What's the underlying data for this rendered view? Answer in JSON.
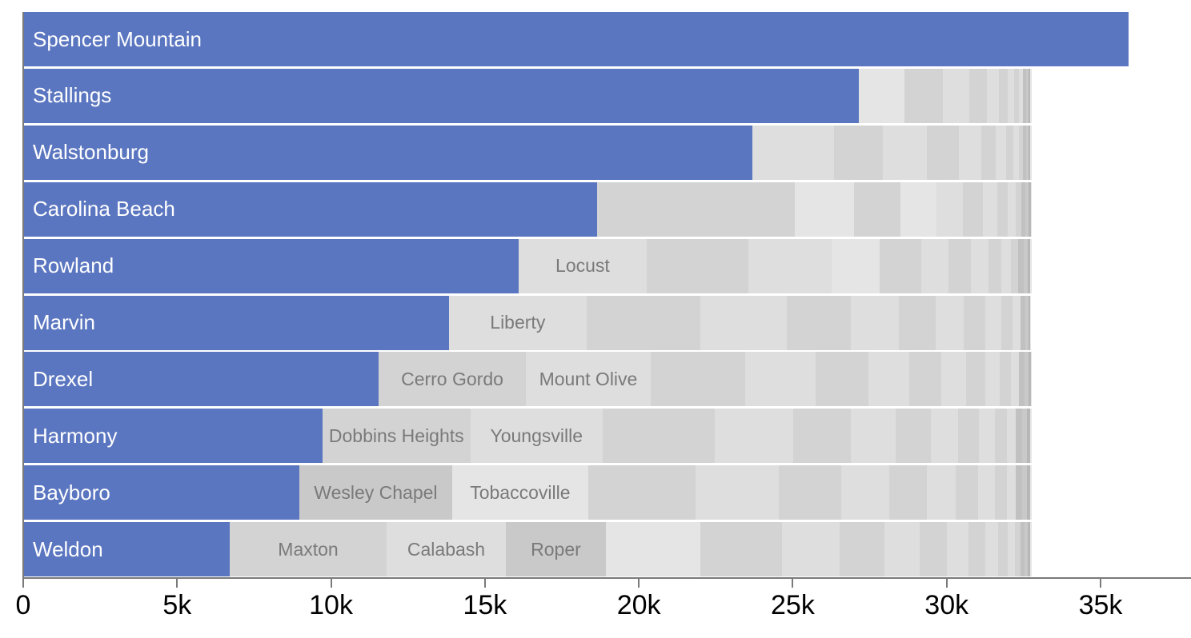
{
  "chart_data": {
    "type": "bar",
    "orientation": "horizontal-stacked",
    "title": "",
    "xlabel": "",
    "ylabel": "",
    "grid": false,
    "legend": "none",
    "x_axis": {
      "min": 0,
      "max": 37900,
      "ticks": [
        {
          "label": "0",
          "value": 0
        },
        {
          "label": "5k",
          "value": 5000
        },
        {
          "label": "10k",
          "value": 10000
        },
        {
          "label": "15k",
          "value": 15000
        },
        {
          "label": "20k",
          "value": 20000
        },
        {
          "label": "25k",
          "value": 25000
        },
        {
          "label": "30k",
          "value": 30000
        },
        {
          "label": "35k",
          "value": 35000
        }
      ]
    },
    "stack_total_approx": 32760,
    "rows": [
      {
        "name": "Spencer Mountain",
        "value": 35900,
        "segments": []
      },
      {
        "name": "Stallings",
        "value": 27145,
        "segments": [
          {
            "v": 1480,
            "s": 2
          },
          {
            "v": 1250,
            "s": 1
          },
          {
            "v": 860,
            "s": 0
          },
          {
            "v": 570,
            "s": 1
          },
          {
            "v": 390,
            "s": 0
          },
          {
            "v": 285,
            "s": 1
          },
          {
            "v": 210,
            "s": 0
          },
          {
            "v": 155,
            "s": 1
          },
          {
            "v": 130,
            "s": 0
          },
          {
            "v": 105,
            "s": 4
          },
          {
            "v": 80,
            "s": 3
          },
          {
            "v": 50,
            "s": 5
          },
          {
            "v": 50,
            "s": 2
          }
        ]
      },
      {
        "name": "Walstonburg",
        "value": 23690,
        "segments": [
          {
            "v": 2650,
            "s": 0
          },
          {
            "v": 1585,
            "s": 1
          },
          {
            "v": 1430,
            "s": 0
          },
          {
            "v": 1040,
            "s": 1
          },
          {
            "v": 730,
            "s": 0
          },
          {
            "v": 470,
            "s": 1
          },
          {
            "v": 340,
            "s": 0
          },
          {
            "v": 235,
            "s": 1
          },
          {
            "v": 180,
            "s": 0
          },
          {
            "v": 130,
            "s": 1
          },
          {
            "v": 105,
            "s": 4
          },
          {
            "v": 80,
            "s": 3
          },
          {
            "v": 50,
            "s": 5
          },
          {
            "v": 50,
            "s": 2
          }
        ]
      },
      {
        "name": "Carolina Beach",
        "value": 18640,
        "segments": [
          {
            "v": 3535,
            "s": 1
          },
          {
            "v": 2885,
            "s": 1
          },
          {
            "v": 1925,
            "s": 2
          },
          {
            "v": 1510,
            "s": 1
          },
          {
            "v": 1170,
            "s": 2
          },
          {
            "v": 860,
            "s": 0
          },
          {
            "v": 650,
            "s": 1
          },
          {
            "v": 470,
            "s": 0
          },
          {
            "v": 340,
            "s": 1
          },
          {
            "v": 260,
            "s": 0
          },
          {
            "v": 180,
            "s": 1
          },
          {
            "v": 130,
            "s": 4
          },
          {
            "v": 105,
            "s": 3
          },
          {
            "v": 80,
            "s": 5
          },
          {
            "v": 25,
            "s": 2
          }
        ]
      },
      {
        "name": "Rowland",
        "value": 16095,
        "segments": [
          {
            "v": 4160,
            "s": 0,
            "label": "Locust"
          },
          {
            "v": 3300,
            "s": 1
          },
          {
            "v": 2705,
            "s": 0
          },
          {
            "v": 1560,
            "s": 2
          },
          {
            "v": 1350,
            "s": 1
          },
          {
            "v": 885,
            "s": 0
          },
          {
            "v": 730,
            "s": 1
          },
          {
            "v": 570,
            "s": 0
          },
          {
            "v": 415,
            "s": 1
          },
          {
            "v": 310,
            "s": 0
          },
          {
            "v": 235,
            "s": 1
          },
          {
            "v": 180,
            "s": 4
          },
          {
            "v": 130,
            "s": 3
          },
          {
            "v": 80,
            "s": 5
          },
          {
            "v": 50,
            "s": 2
          }
        ]
      },
      {
        "name": "Marvin",
        "value": 13830,
        "segments": [
          {
            "v": 4470,
            "s": 0,
            "label": "Liberty"
          },
          {
            "v": 3690,
            "s": 1
          },
          {
            "v": 2810,
            "s": 0
          },
          {
            "v": 2080,
            "s": 1
          },
          {
            "v": 1560,
            "s": 0
          },
          {
            "v": 1195,
            "s": 1
          },
          {
            "v": 910,
            "s": 0
          },
          {
            "v": 700,
            "s": 1
          },
          {
            "v": 520,
            "s": 0
          },
          {
            "v": 365,
            "s": 1
          },
          {
            "v": 260,
            "s": 0
          },
          {
            "v": 180,
            "s": 4
          },
          {
            "v": 105,
            "s": 3
          },
          {
            "v": 50,
            "s": 5
          },
          {
            "v": 25,
            "s": 2
          }
        ]
      },
      {
        "name": "Drexel",
        "value": 11545,
        "segments": [
          {
            "v": 4785,
            "s": 1,
            "label": "Cerro Gordo"
          },
          {
            "v": 4055,
            "s": 0,
            "label": "Mount Olive"
          },
          {
            "v": 3070,
            "s": 1
          },
          {
            "v": 2290,
            "s": 0
          },
          {
            "v": 1715,
            "s": 1
          },
          {
            "v": 1325,
            "s": 0
          },
          {
            "v": 1040,
            "s": 1
          },
          {
            "v": 805,
            "s": 0
          },
          {
            "v": 625,
            "s": 1
          },
          {
            "v": 470,
            "s": 0
          },
          {
            "v": 365,
            "s": 1
          },
          {
            "v": 260,
            "s": 0
          },
          {
            "v": 180,
            "s": 4
          },
          {
            "v": 130,
            "s": 3
          },
          {
            "v": 80,
            "s": 5
          },
          {
            "v": 25,
            "s": 2
          }
        ]
      },
      {
        "name": "Harmony",
        "value": 9720,
        "segments": [
          {
            "v": 4810,
            "s": 1,
            "label": "Dobbins Heights"
          },
          {
            "v": 4290,
            "s": 0,
            "label": "Youngsville"
          },
          {
            "v": 3640,
            "s": 1
          },
          {
            "v": 2550,
            "s": 0
          },
          {
            "v": 1870,
            "s": 1
          },
          {
            "v": 1455,
            "s": 0
          },
          {
            "v": 1145,
            "s": 1
          },
          {
            "v": 885,
            "s": 0
          },
          {
            "v": 675,
            "s": 1
          },
          {
            "v": 520,
            "s": 0
          },
          {
            "v": 390,
            "s": 1
          },
          {
            "v": 285,
            "s": 0
          },
          {
            "v": 210,
            "s": 4
          },
          {
            "v": 155,
            "s": 3
          },
          {
            "v": 105,
            "s": 5
          },
          {
            "v": 50,
            "s": 2
          }
        ]
      },
      {
        "name": "Bayboro",
        "value": 8970,
        "segments": [
          {
            "v": 4965,
            "s": 3,
            "label": "Wesley Chapel"
          },
          {
            "v": 4420,
            "s": 2,
            "label": "Tobaccoville"
          },
          {
            "v": 3485,
            "s": 1
          },
          {
            "v": 2705,
            "s": 0
          },
          {
            "v": 2030,
            "s": 1
          },
          {
            "v": 1560,
            "s": 0
          },
          {
            "v": 1220,
            "s": 1
          },
          {
            "v": 935,
            "s": 0
          },
          {
            "v": 730,
            "s": 1
          },
          {
            "v": 545,
            "s": 0
          },
          {
            "v": 390,
            "s": 1
          },
          {
            "v": 285,
            "s": 0
          },
          {
            "v": 210,
            "s": 4
          },
          {
            "v": 155,
            "s": 3
          },
          {
            "v": 105,
            "s": 5
          },
          {
            "v": 50,
            "s": 2
          }
        ]
      },
      {
        "name": "Weldon",
        "value": 6710,
        "segments": [
          {
            "v": 5095,
            "s": 1,
            "label": "Maxton"
          },
          {
            "v": 3875,
            "s": 0,
            "label": "Calabash"
          },
          {
            "v": 3250,
            "s": 3,
            "label": "Roper"
          },
          {
            "v": 3070,
            "s": 2
          },
          {
            "v": 2650,
            "s": 1
          },
          {
            "v": 1870,
            "s": 0
          },
          {
            "v": 1455,
            "s": 1
          },
          {
            "v": 1145,
            "s": 0
          },
          {
            "v": 885,
            "s": 1
          },
          {
            "v": 700,
            "s": 0
          },
          {
            "v": 545,
            "s": 1
          },
          {
            "v": 415,
            "s": 0
          },
          {
            "v": 310,
            "s": 1
          },
          {
            "v": 235,
            "s": 0
          },
          {
            "v": 180,
            "s": 1
          },
          {
            "v": 130,
            "s": 4
          },
          {
            "v": 105,
            "s": 3
          },
          {
            "v": 80,
            "s": 5
          },
          {
            "v": 50,
            "s": 2
          }
        ]
      }
    ]
  },
  "colors": {
    "primary_blue": "#5b76c0",
    "gray_shades": [
      "#dedede",
      "#d3d3d3",
      "#e5e5e5",
      "#c9c9c9",
      "#c1c1c1",
      "#b7b7b7"
    ],
    "axis": "#7a7a7a",
    "tick_label": "#000000",
    "segment_label": "#7a7a7a",
    "bar_label": "#ffffff"
  }
}
